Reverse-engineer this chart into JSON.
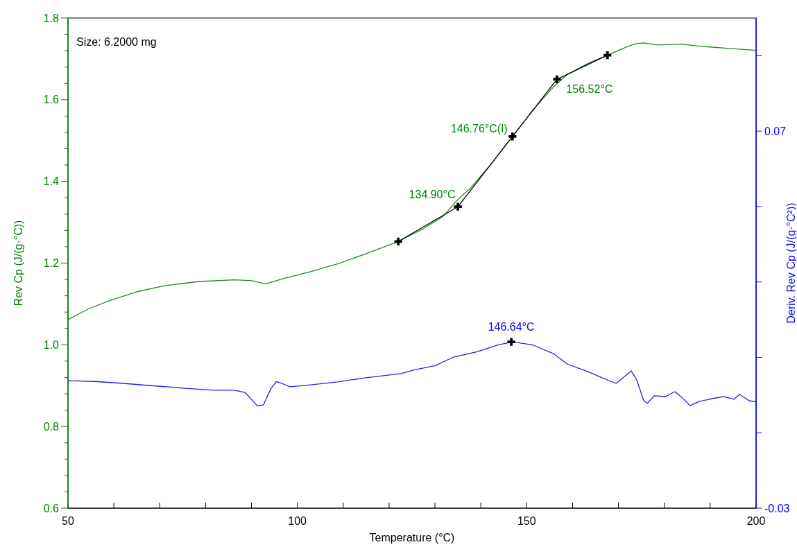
{
  "chart_data": {
    "type": "line",
    "xlabel": "Temperature (°C)",
    "ylabel": "Rev Cp (J/(g·°C))",
    "y2label": "Deriv. Rev Cp (J/(g·°C²))",
    "xlim": [
      50,
      200
    ],
    "xticks": [
      50,
      {
        "value": 60,
        "label": null
      },
      {
        "value": 70,
        "label": null
      },
      {
        "value": 80,
        "label": null
      },
      {
        "value": 90,
        "label": null
      },
      100,
      {
        "value": 110,
        "label": null
      },
      {
        "value": 120,
        "label": null
      },
      {
        "value": 130,
        "label": null
      },
      {
        "value": 140,
        "label": null
      },
      150,
      {
        "value": 160,
        "label": null
      },
      {
        "value": 170,
        "label": null
      },
      {
        "value": 180,
        "label": null
      },
      {
        "value": 190,
        "label": null
      },
      200
    ],
    "ylim": [
      0.6,
      1.8
    ],
    "yticks": [
      {
        "value": 0.6,
        "label": "0.6"
      },
      {
        "value": 0.64,
        "label": null
      },
      {
        "value": 0.68,
        "label": null
      },
      {
        "value": 0.72,
        "label": null
      },
      {
        "value": 0.76,
        "label": null
      },
      {
        "value": 0.8,
        "label": "0.8"
      },
      {
        "value": 0.84,
        "label": null
      },
      {
        "value": 0.88,
        "label": null
      },
      {
        "value": 0.92,
        "label": null
      },
      {
        "value": 0.96,
        "label": null
      },
      {
        "value": 1.0,
        "label": "1.0"
      },
      {
        "value": 1.04,
        "label": null
      },
      {
        "value": 1.08,
        "label": null
      },
      {
        "value": 1.12,
        "label": null
      },
      {
        "value": 1.16,
        "label": null
      },
      {
        "value": 1.2,
        "label": "1.2"
      },
      {
        "value": 1.24,
        "label": null
      },
      {
        "value": 1.28,
        "label": null
      },
      {
        "value": 1.32,
        "label": null
      },
      {
        "value": 1.36,
        "label": null
      },
      {
        "value": 1.4,
        "label": "1.4"
      },
      {
        "value": 1.44,
        "label": null
      },
      {
        "value": 1.48,
        "label": null
      },
      {
        "value": 1.52,
        "label": null
      },
      {
        "value": 1.56,
        "label": null
      },
      {
        "value": 1.6,
        "label": "1.6"
      },
      {
        "value": 1.64,
        "label": null
      },
      {
        "value": 1.68,
        "label": null
      },
      {
        "value": 1.72,
        "label": null
      },
      {
        "value": 1.76,
        "label": null
      },
      {
        "value": 1.8,
        "label": "1.8"
      }
    ],
    "y2lim": [
      -0.03,
      0.1
    ],
    "y2ticks": [
      -0.03,
      {
        "value": -0.01,
        "label": null
      },
      {
        "value": 0.01,
        "label": null
      },
      {
        "value": 0.03,
        "label": null
      },
      {
        "value": 0.05,
        "label": null
      },
      0.07,
      {
        "value": 0.09,
        "label": null
      }
    ],
    "series": [
      {
        "color": "#1e8c1e",
        "x": [
          50,
          54.5,
          59.1,
          65.1,
          71.2,
          78.7,
          86.3,
          90.1,
          93.1,
          96.9,
          102.9,
          109,
          115,
          122,
          127.1,
          131.7,
          135,
          137.7,
          142.2,
          146.9,
          151.3,
          155.8,
          158.9,
          163.4,
          167.6,
          171.7,
          174,
          175.5,
          178.5,
          183.8,
          187.6,
          193.7,
          200
        ],
        "values": [
          1.062,
          1.088,
          1.108,
          1.13,
          1.145,
          1.155,
          1.159,
          1.157,
          1.149,
          1.162,
          1.179,
          1.199,
          1.223,
          1.253,
          1.282,
          1.314,
          1.356,
          1.383,
          1.442,
          1.51,
          1.574,
          1.631,
          1.662,
          1.689,
          1.709,
          1.729,
          1.738,
          1.739,
          1.734,
          1.736,
          1.731,
          1.726,
          1.721
        ]
      },
      {
        "color": "#000000",
        "marker": "cross",
        "x": [
          122,
          135,
          146.9,
          156.6,
          167.6
        ],
        "values": [
          1.253,
          1.338,
          1.51,
          1.65,
          1.709
        ]
      },
      {
        "color": "#1f1ff5",
        "axis": "y2",
        "x": [
          50,
          56,
          62.1,
          68.1,
          75.7,
          81.8,
          86.3,
          88.6,
          91.3,
          92.6,
          94.2,
          95.4,
          96.6,
          98.4,
          102.9,
          108.8,
          115,
          122.6,
          125.6,
          130.1,
          133.9,
          139.2,
          143.7,
          146.9,
          151.3,
          155.8,
          158.9,
          163.4,
          166.4,
          169.5,
          172.8,
          174,
          175.5,
          176.3,
          177.8,
          180.3,
          182.3,
          183.8,
          185.6,
          187.6,
          190.6,
          192.9,
          195.2,
          196.4,
          198.5,
          200
        ],
        "values": [
          0.0038,
          0.0036,
          0.0031,
          0.0025,
          0.0018,
          0.0013,
          0.0013,
          0.0007,
          -0.0029,
          -0.0026,
          0.0016,
          0.0036,
          0.0031,
          0.0022,
          0.0027,
          0.0035,
          0.0046,
          0.0057,
          0.0067,
          0.0078,
          0.01,
          0.0115,
          0.0133,
          0.0141,
          0.0133,
          0.011,
          0.0082,
          0.0062,
          0.0046,
          0.0031,
          0.0064,
          0.004,
          -0.0015,
          -0.0022,
          -0.0002,
          -0.0004,
          0.0009,
          -0.0006,
          -0.0028,
          -0.0017,
          -0.0009,
          -0.0004,
          -0.0011,
          0.0002,
          -0.0015,
          -0.0018
        ]
      },
      {
        "type": "scatter",
        "color": "#000000",
        "axis": "y2",
        "marker": "cross",
        "x": [
          146.64
        ],
        "values": [
          0.0141
        ]
      }
    ],
    "annotations": [
      {
        "text": "134.90°C",
        "x": 134.9,
        "y": 1.338
      },
      {
        "text": "146.76°C(I)",
        "x": 146.76,
        "y": 1.51
      },
      {
        "text": "156.52°C",
        "x": 156.52,
        "y": 1.65
      },
      {
        "text": "146.64°C",
        "x": 146.64,
        "y": 1.007
      },
      "Size: 6.2000 mg"
    ]
  }
}
